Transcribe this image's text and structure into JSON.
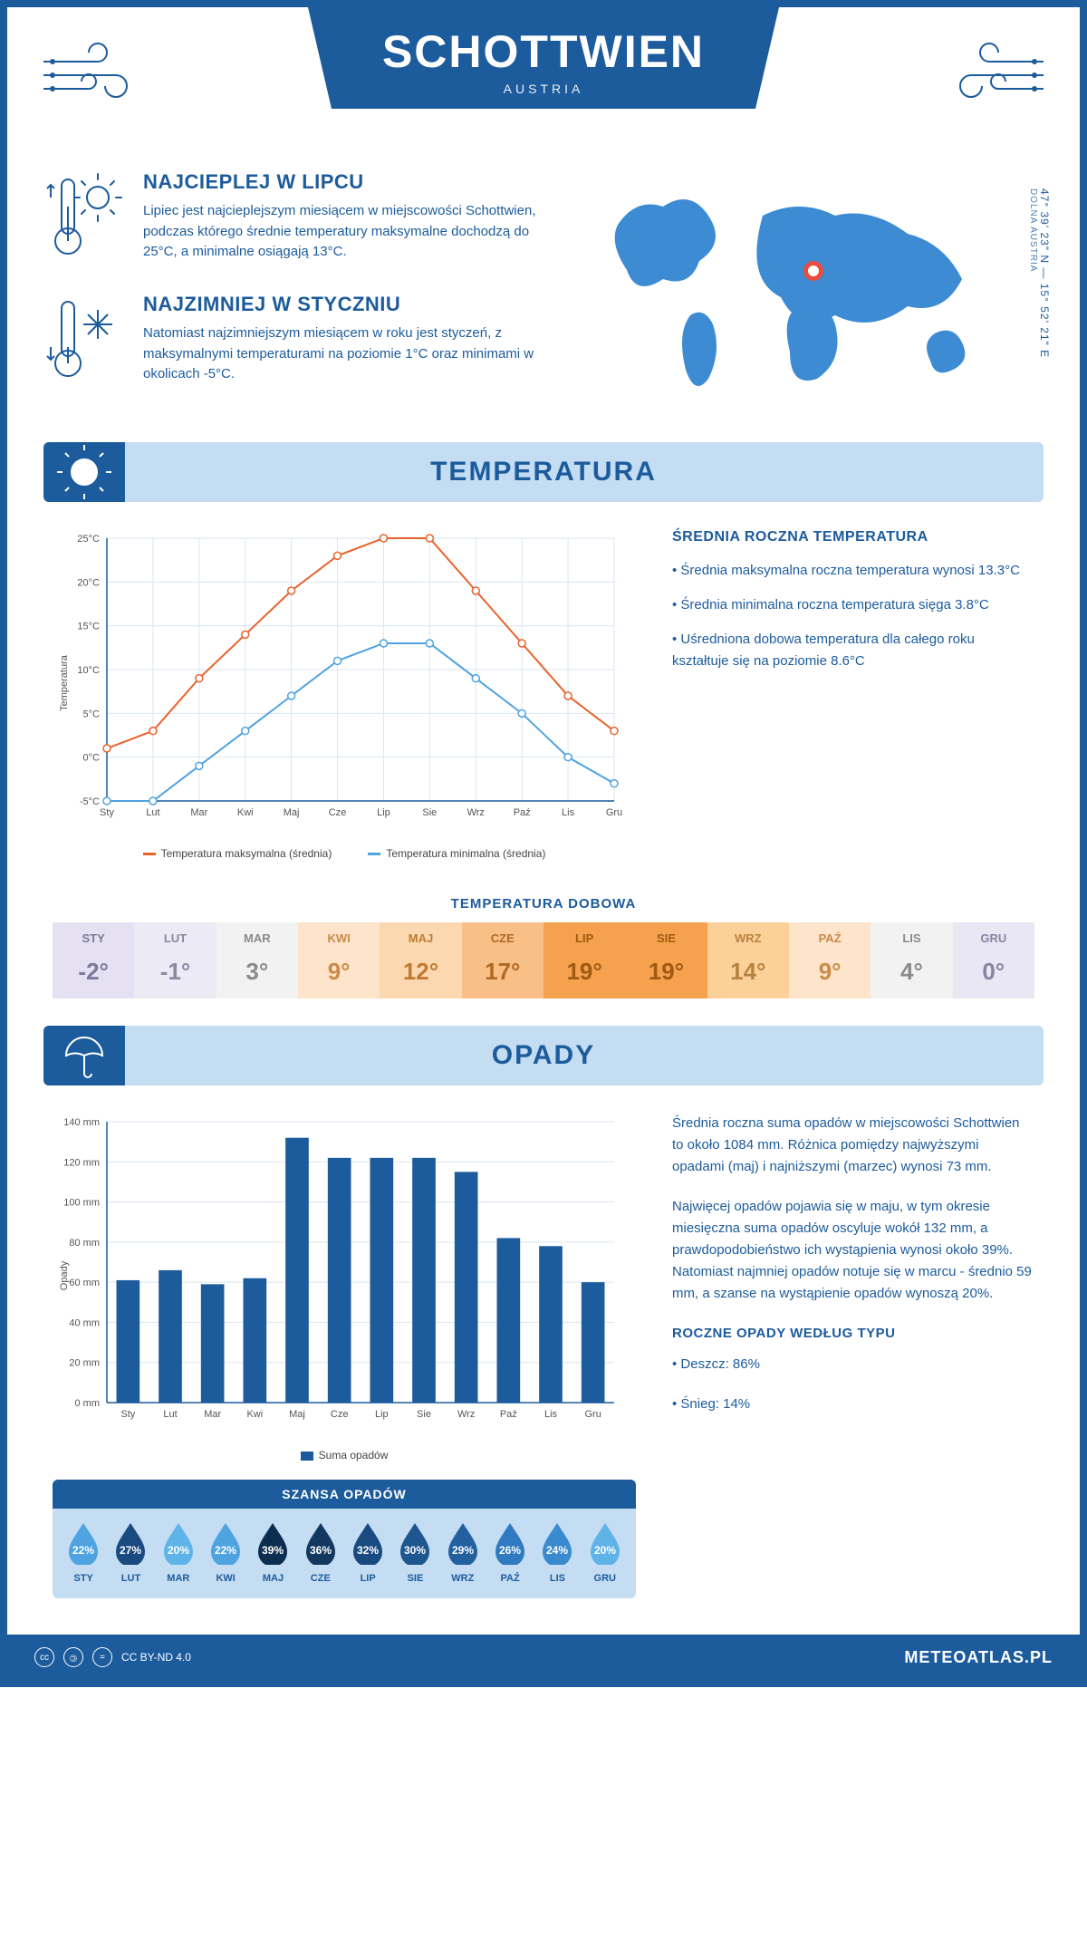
{
  "header": {
    "title": "SCHOTTWIEN",
    "subtitle": "AUSTRIA"
  },
  "coords": {
    "lat": "47° 39' 23\" N",
    "lon": "15° 52' 21\" E",
    "region": "DOLNA AUSTRIA"
  },
  "facts": {
    "hot": {
      "title": "NAJCIEPLEJ W LIPCU",
      "text": "Lipiec jest najcieplejszym miesiącem w miejscowości Schottwien, podczas którego średnie temperatury maksymalne dochodzą do 25°C, a minimalne osiągają 13°C."
    },
    "cold": {
      "title": "NAJZIMNIEJ W STYCZNIU",
      "text": "Natomiast najzimniejszym miesiącem w roku jest styczeń, z maksymalnymi temperaturami na poziomie 1°C oraz minimami w okolicach -5°C."
    }
  },
  "months_short": [
    "Sty",
    "Lut",
    "Mar",
    "Kwi",
    "Maj",
    "Cze",
    "Lip",
    "Sie",
    "Wrz",
    "Paź",
    "Lis",
    "Gru"
  ],
  "months_caps": [
    "STY",
    "LUT",
    "MAR",
    "KWI",
    "MAJ",
    "CZE",
    "LIP",
    "SIE",
    "WRZ",
    "PAŹ",
    "LIS",
    "GRU"
  ],
  "temp_section": {
    "heading": "TEMPERATURA",
    "chart": {
      "type": "line",
      "y_label": "Temperatura",
      "ylim": [
        -5,
        25
      ],
      "ytick_step": 5,
      "ytick_suffix": "°C",
      "grid_color": "#d9e6f2",
      "axis_color": "#1c5b9c",
      "series": [
        {
          "name": "Temperatura maksymalna (średnia)",
          "color": "#e8622c",
          "values": [
            1,
            3,
            9,
            14,
            19,
            23,
            25,
            25,
            19,
            13,
            7,
            3
          ]
        },
        {
          "name": "Temperatura minimalna (średnia)",
          "color": "#4fa3e0",
          "values": [
            -5,
            -5,
            -1,
            3,
            7,
            11,
            13,
            13,
            9,
            5,
            0,
            -3
          ]
        }
      ],
      "marker": "circle",
      "marker_size": 4,
      "line_width": 2
    },
    "stats": {
      "title": "ŚREDNIA ROCZNA TEMPERATURA",
      "bullets": [
        "Średnia maksymalna roczna temperatura wynosi 13.3°C",
        "Średnia minimalna roczna temperatura sięga 3.8°C",
        "Uśredniona dobowa temperatura dla całego roku kształtuje się na poziomie 8.6°C"
      ]
    },
    "daily": {
      "title": "TEMPERATURA DOBOWA",
      "values": [
        "-2°",
        "-1°",
        "3°",
        "9°",
        "12°",
        "17°",
        "19°",
        "19°",
        "14°",
        "9°",
        "4°",
        "0°"
      ],
      "bg_colors": [
        "#e5e1f2",
        "#ebeaf5",
        "#f2f2f3",
        "#fde4cb",
        "#fcd8b0",
        "#f8bf87",
        "#f5a14d",
        "#f5a14d",
        "#fcd099",
        "#fde4cb",
        "#f2f2f3",
        "#e9e7f3"
      ],
      "text_colors": [
        "#7a7a9a",
        "#8a8aa0",
        "#8a8a8a",
        "#c98b4a",
        "#c07a33",
        "#b06a24",
        "#a05a14",
        "#a05a14",
        "#b8823e",
        "#c98b4a",
        "#8a8a8a",
        "#8585a0"
      ]
    }
  },
  "precip_section": {
    "heading": "OPADY",
    "chart": {
      "type": "bar",
      "y_label": "Opady",
      "ylim": [
        0,
        140
      ],
      "ytick_step": 20,
      "ytick_suffix": " mm",
      "bar_color": "#1c5b9c",
      "grid_color": "#d9e6f2",
      "values": [
        61,
        66,
        59,
        62,
        132,
        122,
        122,
        122,
        115,
        82,
        78,
        60
      ],
      "legend": "Suma opadów"
    },
    "text": {
      "p1": "Średnia roczna suma opadów w miejscowości Schottwien to około 1084 mm. Różnica pomiędzy najwyższymi opadami (maj) i najniższymi (marzec) wynosi 73 mm.",
      "p2": "Najwięcej opadów pojawia się w maju, w tym okresie miesięczna suma opadów oscyluje wokół 132 mm, a prawdopodobieństwo ich wystąpienia wynosi około 39%. Natomiast najmniej opadów notuje się w marcu - średnio 59 mm, a szanse na wystąpienie opadów wynoszą 20%.",
      "type_title": "ROCZNE OPADY WEDŁUG TYPU",
      "rain": "Deszcz: 86%",
      "snow": "Śnieg: 14%"
    },
    "chance": {
      "title": "SZANSA OPADÓW",
      "values": [
        "22%",
        "27%",
        "20%",
        "22%",
        "39%",
        "36%",
        "32%",
        "30%",
        "29%",
        "26%",
        "24%",
        "20%"
      ],
      "colors": [
        "#4fa3e0",
        "#194a80",
        "#5eb4e8",
        "#4fa3e0",
        "#0d2d50",
        "#133860",
        "#194a80",
        "#1e5690",
        "#2260a0",
        "#2f7ac0",
        "#3a8ad0",
        "#5eb4e8"
      ]
    }
  },
  "footer": {
    "license": "CC BY-ND 4.0",
    "site": "METEOATLAS.PL"
  },
  "colors": {
    "primary": "#1c5b9c",
    "light_blue_bg": "#c4ddf2",
    "orange": "#e8622c",
    "sky": "#4fa3e0",
    "map_fill": "#3d8cd3"
  }
}
